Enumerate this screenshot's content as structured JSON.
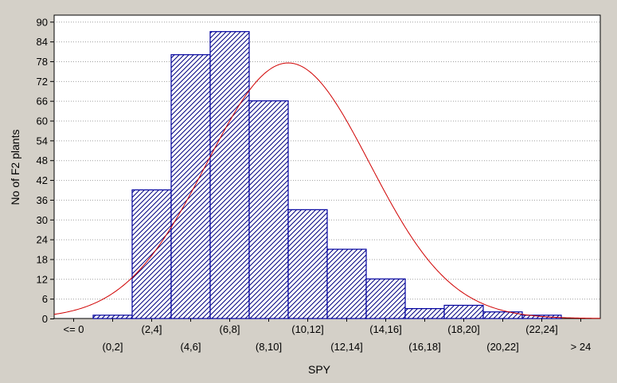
{
  "chart_data": {
    "type": "bar",
    "xlabel": "SPY",
    "ylabel": "No of F2 plants",
    "categories": [
      "<= 0",
      "(0,2]",
      "(2,4]",
      "(4,6]",
      "(6,8]",
      "(8,10]",
      "(10,12]",
      "(12,14]",
      "(14,16]",
      "(16,18]",
      "(18,20]",
      "(20,22]",
      "(22,24]",
      "> 24"
    ],
    "values": [
      0,
      1,
      39,
      80,
      87,
      66,
      33,
      21,
      12,
      3,
      4,
      2,
      1,
      0
    ],
    "y_ticks": [
      0,
      6,
      12,
      18,
      24,
      30,
      36,
      42,
      48,
      54,
      60,
      66,
      72,
      78,
      84,
      90
    ],
    "ylim": [
      0,
      92
    ],
    "grid": "horizontal dotted",
    "fitted_curve": {
      "type": "normal",
      "peak": 77.5,
      "peak_category_position": 5.5,
      "sd_categories": 2.09
    },
    "colors": {
      "background": "#d4d0c8",
      "plot_area": "#ffffff",
      "bar_fill": "#ffffff",
      "bar_hatch": "#000080",
      "bar_stroke": "#0000a0",
      "curve": "#d00000",
      "grid": "#a0a0a0"
    }
  }
}
